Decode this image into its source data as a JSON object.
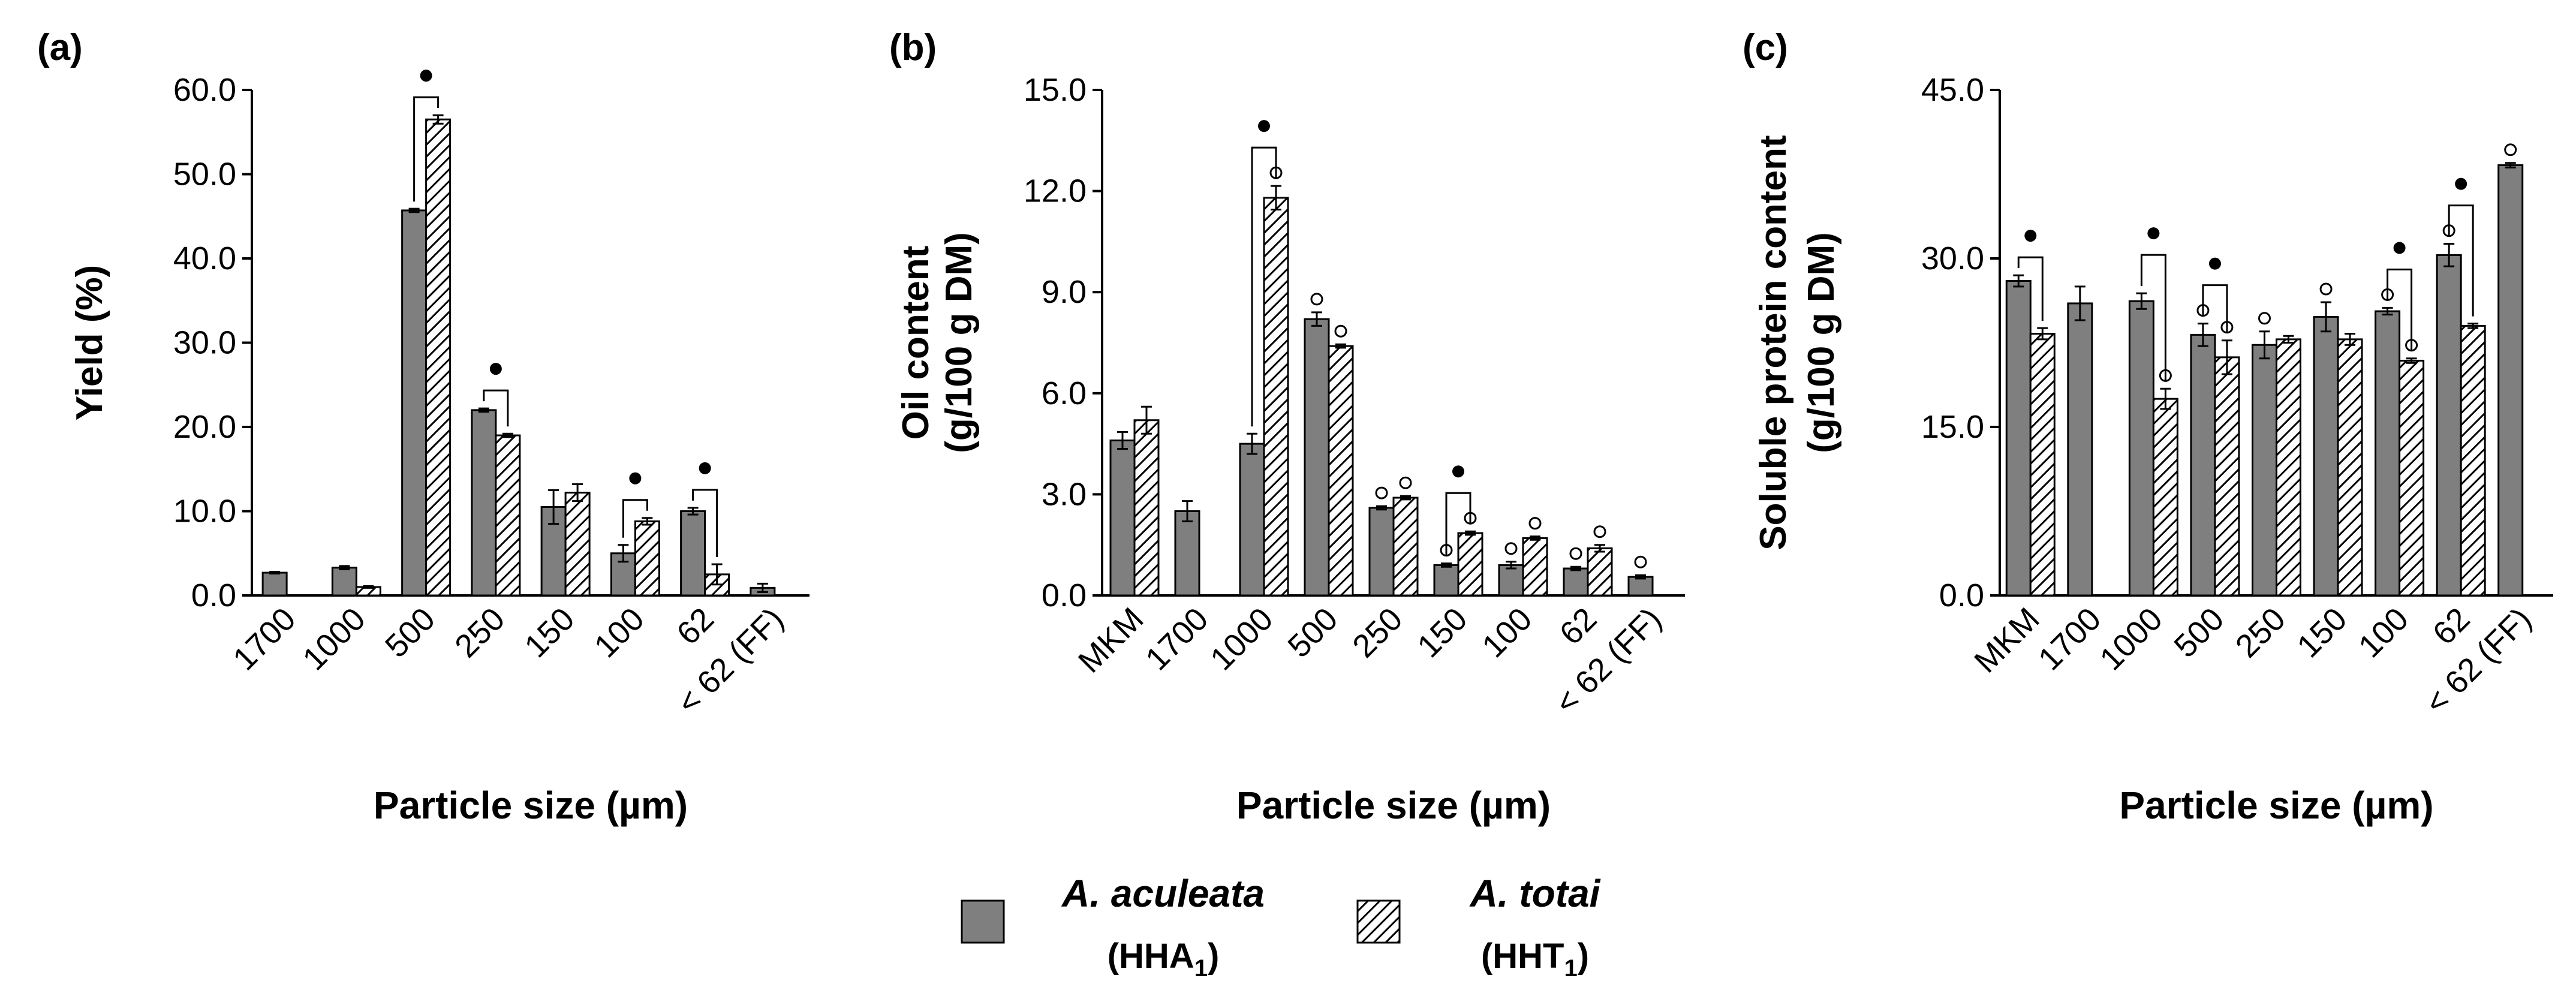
{
  "legend": {
    "items": [
      {
        "name": "A. aculeata",
        "code_base": "HHA",
        "code_sub": "1",
        "color": "#7f7f7f",
        "pattern": "solid"
      },
      {
        "name": "A. totai",
        "code_base": "HHT",
        "code_sub": "1",
        "color": "#ffffff",
        "pattern": "hatch"
      }
    ]
  },
  "chart_data": [
    {
      "type": "bar",
      "panel_label": "(a)",
      "xlabel": "Particle size (µm)",
      "ylabel": [
        "Yield (%)"
      ],
      "ylim": [
        0,
        60
      ],
      "yticks": [
        "0.0",
        "10.0",
        "20.0",
        "30.0",
        "40.0",
        "50.0",
        "60.0"
      ],
      "categories": [
        "1700",
        "1000",
        "500",
        "250",
        "150",
        "100",
        "62",
        "< 62 (FF)"
      ],
      "series": [
        {
          "name": "A. aculeata (HHA1)",
          "values": [
            2.7,
            3.3,
            45.7,
            22.0,
            10.5,
            5.0,
            10.0,
            0.9
          ],
          "errors": [
            0.1,
            0.2,
            0.2,
            0.2,
            2.0,
            1.0,
            0.4,
            0.5
          ]
        },
        {
          "name": "A. totai (HHT1)",
          "values": [
            null,
            1.0,
            56.5,
            19.0,
            12.2,
            8.8,
            2.5,
            null
          ],
          "errors": [
            null,
            0.1,
            0.5,
            0.2,
            1.0,
            0.4,
            1.2,
            null
          ]
        }
      ],
      "significance_brackets": [
        2,
        3,
        5,
        6
      ],
      "circles_a": [],
      "circles_b": []
    },
    {
      "type": "bar",
      "panel_label": "(b)",
      "xlabel": "Particle size (µm)",
      "ylabel": [
        "Oil content",
        "(g/100 g DM)"
      ],
      "ylim": [
        0,
        15
      ],
      "yticks": [
        "0.0",
        "3.0",
        "6.0",
        "9.0",
        "12.0",
        "15.0"
      ],
      "categories": [
        "MKM",
        "1700",
        "1000",
        "500",
        "250",
        "150",
        "100",
        "62",
        "< 62 (FF)"
      ],
      "series": [
        {
          "name": "A. aculeata (HHA1)",
          "values": [
            4.6,
            2.5,
            4.5,
            8.2,
            2.6,
            0.9,
            0.9,
            0.8,
            0.55
          ],
          "errors": [
            0.25,
            0.3,
            0.3,
            0.2,
            0.05,
            0.05,
            0.1,
            0.05,
            0.05
          ]
        },
        {
          "name": "A. totai (HHT1)",
          "values": [
            5.2,
            null,
            11.8,
            7.4,
            2.9,
            1.85,
            1.7,
            1.4,
            null
          ],
          "errors": [
            0.4,
            null,
            0.35,
            0.05,
            0.05,
            0.05,
            0.05,
            0.1,
            null
          ]
        }
      ],
      "significance_brackets": [
        2,
        5
      ],
      "circles_a": [
        3,
        4,
        5,
        6,
        7,
        8
      ],
      "circles_b": [
        2,
        3,
        4,
        5,
        6,
        7
      ]
    },
    {
      "type": "bar",
      "panel_label": "(c)",
      "xlabel": "Particle size (µm)",
      "ylabel": [
        "Soluble protein content",
        "(g/100 g DM)"
      ],
      "ylim": [
        0,
        45
      ],
      "yticks": [
        "0.0",
        "15.0",
        "30.0",
        "45.0"
      ],
      "categories": [
        "MKM",
        "1700",
        "1000",
        "500",
        "250",
        "150",
        "100",
        "62",
        "< 62 (FF)"
      ],
      "series": [
        {
          "name": "A. aculeata (HHA1)",
          "values": [
            28.0,
            26.0,
            26.2,
            23.2,
            22.3,
            24.8,
            25.3,
            30.3,
            38.3
          ],
          "errors": [
            0.5,
            1.5,
            0.7,
            1.0,
            1.2,
            1.3,
            0.3,
            1.0,
            0.2
          ]
        },
        {
          "name": "A. totai (HHT1)",
          "values": [
            23.3,
            null,
            17.5,
            21.2,
            22.8,
            22.8,
            20.9,
            24.0,
            null
          ],
          "errors": [
            0.5,
            null,
            0.9,
            1.5,
            0.3,
            0.5,
            0.2,
            0.2,
            null
          ]
        }
      ],
      "significance_brackets": [
        0,
        2,
        3,
        6,
        7
      ],
      "circles_a": [
        3,
        4,
        5,
        6,
        7,
        8
      ],
      "circles_b": [
        2,
        3,
        6
      ]
    }
  ]
}
